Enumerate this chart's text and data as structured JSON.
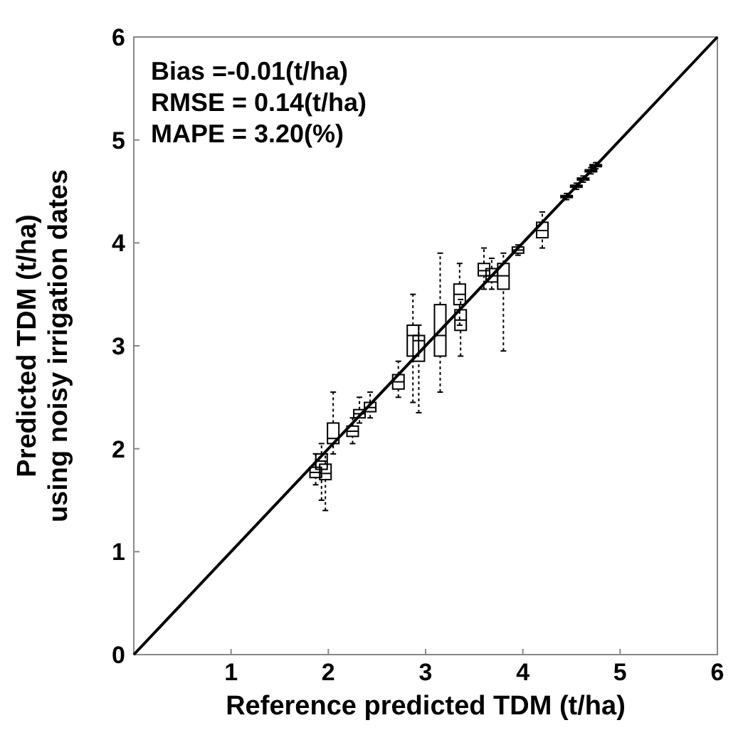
{
  "chart_data": {
    "type": "box",
    "xlabel": "Reference predicted TDM (t/ha)",
    "ylabel": "Predicted TDM (t/ha)\nusing noisy irrigation dates",
    "annotations": [
      "Bias =-0.01(t/ha)",
      "RMSE = 0.14(t/ha)",
      "MAPE = 3.20(%)"
    ],
    "xlim": [
      0,
      6
    ],
    "ylim": [
      0,
      6
    ],
    "xticks": [
      {
        "value": 0,
        "label": null
      },
      1,
      2,
      3,
      4,
      5,
      6
    ],
    "yticks": [
      0,
      1,
      2,
      3,
      4,
      5,
      6
    ],
    "grid": false,
    "color": "#000000",
    "x": [
      1.87,
      1.93,
      1.97,
      2.05,
      2.25,
      2.32,
      2.43,
      2.72,
      2.87,
      2.93,
      3.15,
      3.35,
      3.36,
      3.6,
      3.68,
      3.8,
      3.95,
      4.2,
      4.45,
      4.55,
      4.62,
      4.7,
      4.75
    ],
    "boxes": [
      {
        "low": 1.65,
        "q1": 1.72,
        "median": 1.77,
        "q3": 1.82,
        "high": 1.95
      },
      {
        "low": 1.5,
        "q1": 1.8,
        "median": 1.88,
        "q3": 1.95,
        "high": 2.05
      },
      {
        "low": 1.4,
        "q1": 1.7,
        "median": 1.76,
        "q3": 1.85,
        "high": 1.95
      },
      {
        "low": 1.95,
        "q1": 2.05,
        "median": 2.1,
        "q3": 2.25,
        "high": 2.55
      },
      {
        "low": 2.05,
        "q1": 2.12,
        "median": 2.17,
        "q3": 2.22,
        "high": 2.3
      },
      {
        "low": 2.25,
        "q1": 2.3,
        "median": 2.34,
        "q3": 2.38,
        "high": 2.5
      },
      {
        "low": 2.3,
        "q1": 2.36,
        "median": 2.4,
        "q3": 2.45,
        "high": 2.55
      },
      {
        "low": 2.5,
        "q1": 2.58,
        "median": 2.65,
        "q3": 2.72,
        "high": 2.85
      },
      {
        "low": 2.45,
        "q1": 2.9,
        "median": 3.1,
        "q3": 3.2,
        "high": 3.5
      },
      {
        "low": 2.35,
        "q1": 2.85,
        "median": 3.05,
        "q3": 3.1,
        "high": 3.2
      },
      {
        "low": 2.55,
        "q1": 2.9,
        "median": 3.1,
        "q3": 3.4,
        "high": 3.9
      },
      {
        "low": 3.2,
        "q1": 3.4,
        "median": 3.5,
        "q3": 3.6,
        "high": 3.8
      },
      {
        "low": 2.9,
        "q1": 3.15,
        "median": 3.25,
        "q3": 3.35,
        "high": 3.45
      },
      {
        "low": 3.55,
        "q1": 3.68,
        "median": 3.73,
        "q3": 3.8,
        "high": 3.95
      },
      {
        "low": 3.55,
        "q1": 3.62,
        "median": 3.68,
        "q3": 3.75,
        "high": 3.85
      },
      {
        "low": 2.95,
        "q1": 3.55,
        "median": 3.68,
        "q3": 3.8,
        "high": 3.9
      },
      {
        "low": 3.88,
        "q1": 3.9,
        "median": 3.93,
        "q3": 3.96,
        "high": 3.98
      },
      {
        "low": 3.95,
        "q1": 4.05,
        "median": 4.12,
        "q3": 4.2,
        "high": 4.3
      },
      {
        "low": 4.42,
        "q1": 4.44,
        "median": 4.45,
        "q3": 4.46,
        "high": 4.48
      },
      {
        "low": 4.52,
        "q1": 4.54,
        "median": 4.55,
        "q3": 4.56,
        "high": 4.58
      },
      {
        "low": 4.59,
        "q1": 4.61,
        "median": 4.62,
        "q3": 4.63,
        "high": 4.65
      },
      {
        "low": 4.67,
        "q1": 4.69,
        "median": 4.7,
        "q3": 4.71,
        "high": 4.73
      },
      {
        "low": 4.72,
        "q1": 4.74,
        "median": 4.75,
        "q3": 4.76,
        "high": 4.78
      }
    ],
    "series": [
      {
        "type": "line",
        "x": [
          0,
          6
        ],
        "values": [
          0,
          6
        ],
        "color": "#000000"
      }
    ]
  }
}
